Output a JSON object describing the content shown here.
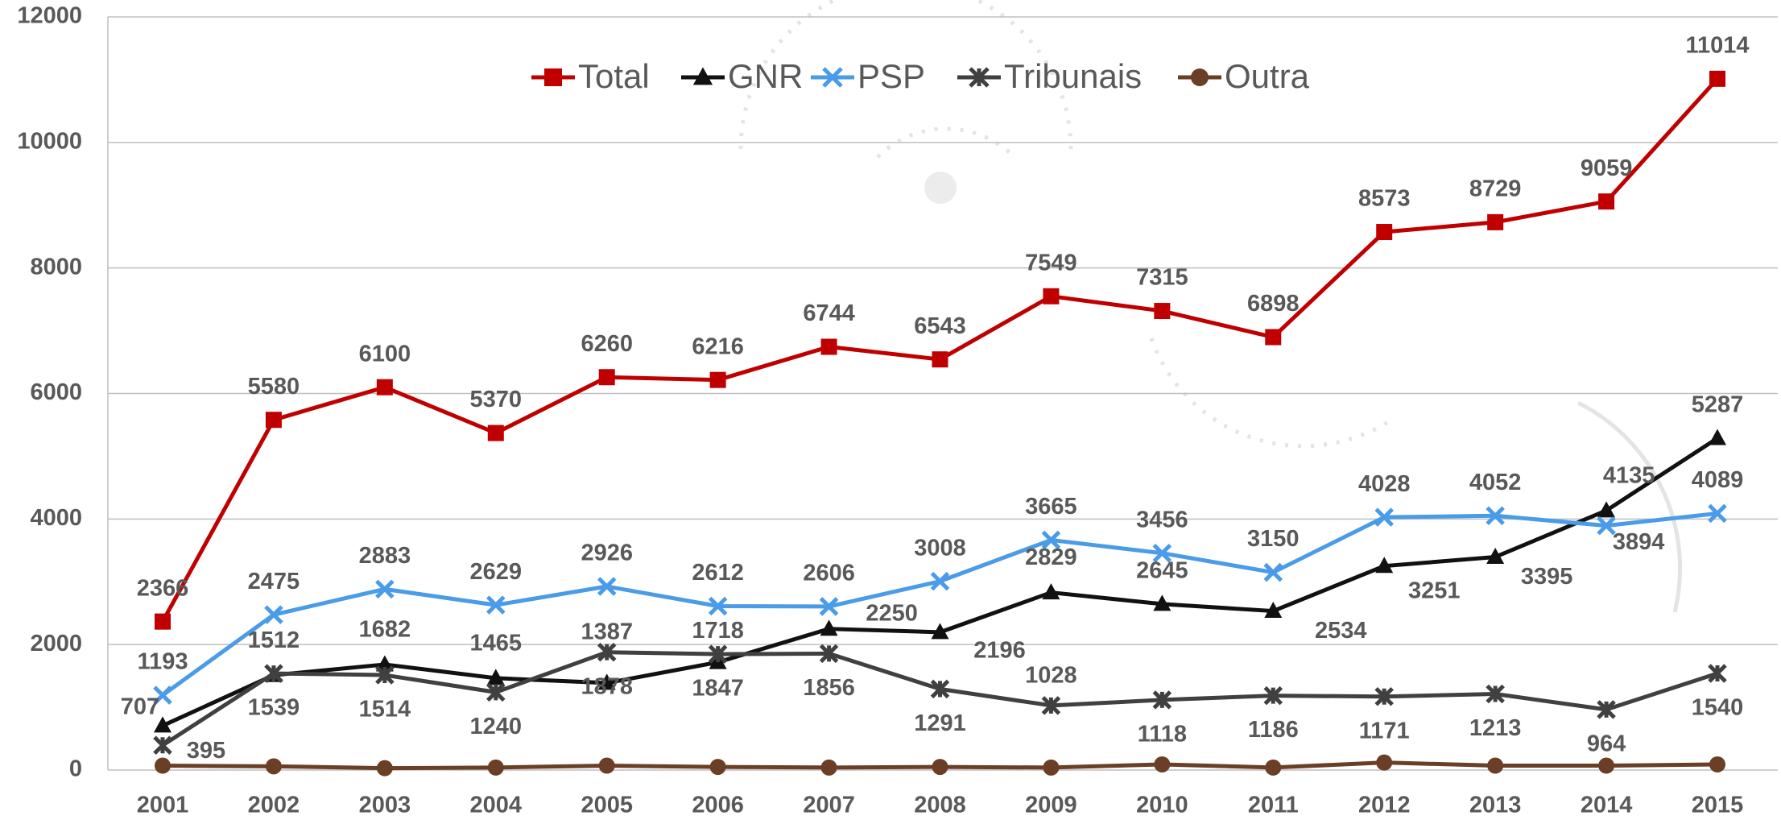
{
  "chart_data": {
    "type": "line",
    "categories": [
      "2001",
      "2002",
      "2003",
      "2004",
      "2005",
      "2006",
      "2007",
      "2008",
      "2009",
      "2010",
      "2011",
      "2012",
      "2013",
      "2014",
      "2015"
    ],
    "series": [
      {
        "name": "Total",
        "color": "#c00000",
        "marker": "square",
        "values": [
          2366,
          5580,
          6100,
          5370,
          6260,
          6216,
          6744,
          6543,
          7549,
          7315,
          6898,
          8573,
          8729,
          9059,
          11014
        ]
      },
      {
        "name": "GNR",
        "color": "#111111",
        "marker": "triangle",
        "values": [
          707,
          1512,
          1682,
          1465,
          1387,
          1718,
          2250,
          2196,
          2829,
          2645,
          2534,
          3251,
          3395,
          4135,
          5287
        ]
      },
      {
        "name": "PSP",
        "color": "#4a9be8",
        "marker": "x",
        "values": [
          1193,
          2475,
          2883,
          2629,
          2926,
          2612,
          2606,
          3008,
          3665,
          3456,
          3150,
          4028,
          4052,
          3894,
          4089
        ]
      },
      {
        "name": "Tribunais",
        "color": "#404040",
        "marker": "star",
        "values": [
          395,
          1539,
          1514,
          1240,
          1878,
          1847,
          1856,
          1291,
          1028,
          1118,
          1186,
          1171,
          1213,
          964,
          1540
        ]
      },
      {
        "name": "Outra",
        "color": "#6b3e26",
        "marker": "circle",
        "values": [
          70,
          60,
          30,
          40,
          70,
          50,
          40,
          50,
          40,
          90,
          40,
          120,
          70,
          70,
          90
        ]
      }
    ],
    "ylim": [
      0,
      12000
    ],
    "yticks": [
      0,
      2000,
      4000,
      6000,
      8000,
      10000,
      12000
    ],
    "grid": true,
    "legend": "top"
  }
}
